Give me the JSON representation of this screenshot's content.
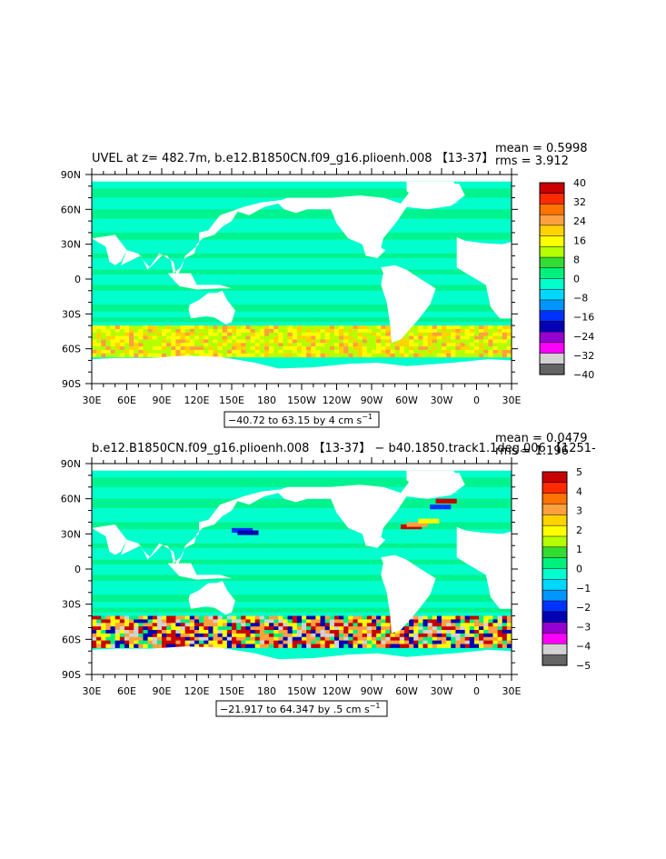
{
  "chart_data": [
    {
      "type": "heatmap",
      "title": "UVEL at z= 482.7m, b.e12.B1850CN.f09_g16.plioenh.008 【13-37】",
      "mean_text": "mean = 0.5998",
      "rms_text": "rms = 3.912",
      "range_text": "−40.72 to 63.15 by 4 cm s",
      "range_sup": "−1",
      "ylim": [
        -90,
        90
      ],
      "xlim_deg_east": [
        30,
        390
      ],
      "x_ticks": [
        "30E",
        "60E",
        "90E",
        "120E",
        "150E",
        "180",
        "150W",
        "120W",
        "90W",
        "60W",
        "30W",
        "0",
        "30E"
      ],
      "y_ticks": [
        "90N",
        "60N",
        "30N",
        "0",
        "30S",
        "60S",
        "90S"
      ],
      "colorbar": {
        "labels": [
          "40",
          "32",
          "24",
          "16",
          "8",
          "0",
          "−8",
          "−16",
          "−24",
          "−32",
          "−40"
        ],
        "colors": [
          "#c80000",
          "#ff2a00",
          "#ff7300",
          "#ffa040",
          "#ffd300",
          "#ffff00",
          "#b4ff00",
          "#32dc32",
          "#00f07d",
          "#00ffcd",
          "#00d7ff",
          "#0096ff",
          "#0032ff",
          "#0000b4",
          "#9600d2",
          "#ff00ff",
          "#d2d2d2",
          "#646464"
        ]
      }
    },
    {
      "type": "heatmap",
      "title": "b.e12.B1850CN.f09_g16.plioenh.008 【13-37】 − b40.1850.track1.1deg.006 【1251-",
      "mean_text": "mean = 0.0479",
      "rms_text": "rms = 1.196",
      "range_text": "−21.917 to 64.347 by .5 cm s",
      "range_sup": "−1",
      "ylim": [
        -90,
        90
      ],
      "xlim_deg_east": [
        30,
        390
      ],
      "x_ticks": [
        "30E",
        "60E",
        "90E",
        "120E",
        "150E",
        "180",
        "150W",
        "120W",
        "90W",
        "60W",
        "30W",
        "0",
        "30E"
      ],
      "y_ticks": [
        "90N",
        "60N",
        "30N",
        "0",
        "30S",
        "60S",
        "90S"
      ],
      "colorbar": {
        "labels": [
          "5",
          "4",
          "3",
          "2",
          "1",
          "0",
          "−1",
          "−2",
          "−3",
          "−4",
          "−5"
        ],
        "colors": [
          "#c80000",
          "#ff2a00",
          "#ff7300",
          "#ffa040",
          "#ffd300",
          "#ffff00",
          "#b4ff00",
          "#32dc32",
          "#00f07d",
          "#00ffcd",
          "#00d7ff",
          "#0096ff",
          "#0032ff",
          "#0000b4",
          "#9600d2",
          "#ff00ff",
          "#d2d2d2",
          "#646464"
        ]
      }
    }
  ],
  "colors": {
    "ocean_base": "#00ffcd",
    "ocean_green": "#00f07d",
    "land": "#ffffff"
  }
}
